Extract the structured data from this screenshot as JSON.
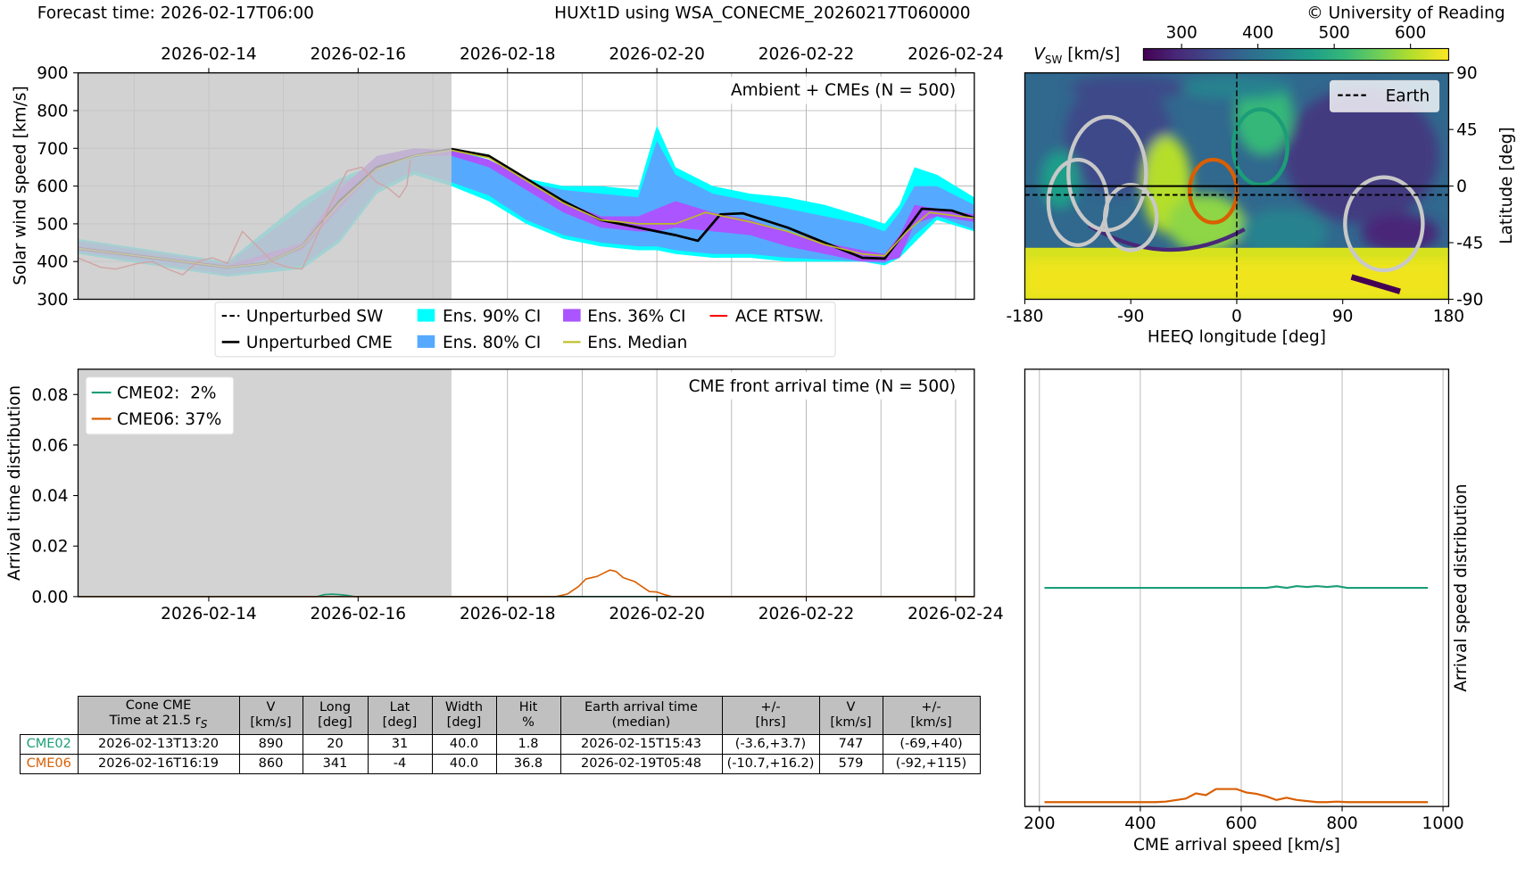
{
  "header": {
    "forecast_time": "Forecast time: 2026-02-17T06:00",
    "title": "HUXt1D using WSA_CONECME_20260217T060000",
    "copyright": "© University of Reading"
  },
  "colors": {
    "cyan": "#00ffff",
    "blue": "#55aaff",
    "purple": "#aa55ff",
    "median": "#bcbd22",
    "ace": "#ff0000",
    "cme02": "#1b9e77",
    "cme06": "#d95f02",
    "shade": "#d3d3d3",
    "ellipse_gray": "#c8c8c8"
  },
  "chart_data": [
    {
      "id": "solar-wind-speed",
      "type": "line",
      "title": "Ambient + CMEs (N = 500)",
      "ylabel": "Solar wind speed [km/s]",
      "ylim": [
        300,
        900
      ],
      "yticks": [
        "300",
        "400",
        "500",
        "600",
        "700",
        "800",
        "900"
      ],
      "x_unit": "days since 2026-02-12T06:00",
      "xlim": [
        0,
        12
      ],
      "date_ticks": [
        "2026-02-14",
        "2026-02-16",
        "2026-02-18",
        "2026-02-20",
        "2026-02-22",
        "2026-02-24"
      ],
      "date_tick_days": [
        1.75,
        3.75,
        5.75,
        7.75,
        9.75,
        11.75
      ],
      "forecast_shade_until_day": 5,
      "grid": true,
      "legend": {
        "placement": "below",
        "items": [
          "Unperturbed SW",
          "Unperturbed CME",
          "Ens. 90% CI",
          "Ens. 80% CI",
          "Ens. 36% CI",
          "Ens. Median",
          "ACE RTSW."
        ]
      },
      "band_x": [
        0,
        1,
        2,
        3,
        3.5,
        4,
        4.5,
        5,
        5.5,
        6,
        6.5,
        7,
        7.5,
        7.75,
        8,
        8.5,
        9,
        9.5,
        10,
        10.5,
        10.8,
        11,
        11.2,
        11.5,
        12
      ],
      "ci90": {
        "lower": [
          420,
          390,
          360,
          380,
          450,
          580,
          630,
          600,
          560,
          500,
          460,
          440,
          430,
          430,
          420,
          410,
          410,
          400,
          400,
          400,
          390,
          410,
          450,
          510,
          480
        ],
        "upper": [
          460,
          430,
          400,
          560,
          620,
          660,
          690,
          700,
          670,
          620,
          600,
          600,
          590,
          760,
          650,
          600,
          580,
          570,
          550,
          520,
          500,
          550,
          650,
          630,
          570
        ]
      },
      "ci80": {
        "lower": [
          425,
          395,
          365,
          390,
          460,
          590,
          640,
          610,
          575,
          510,
          470,
          450,
          440,
          440,
          430,
          420,
          420,
          410,
          405,
          400,
          395,
          420,
          470,
          520,
          485
        ],
        "upper": [
          455,
          425,
          395,
          540,
          610,
          650,
          680,
          690,
          660,
          610,
          590,
          580,
          570,
          720,
          630,
          580,
          560,
          540,
          520,
          500,
          480,
          530,
          600,
          600,
          550
        ]
      },
      "ci36": {
        "lower": [
          430,
          405,
          380,
          430,
          540,
          640,
          680,
          680,
          650,
          590,
          530,
          490,
          480,
          480,
          490,
          480,
          470,
          440,
          420,
          400,
          400,
          410,
          500,
          520,
          505
        ],
        "upper": [
          440,
          415,
          390,
          450,
          590,
          680,
          700,
          695,
          670,
          620,
          560,
          520,
          520,
          540,
          560,
          530,
          510,
          480,
          450,
          430,
          420,
          470,
          550,
          540,
          525
        ]
      },
      "unperturbed_cme": {
        "x": [
          0,
          1,
          2,
          2.5,
          3,
          3.5,
          4,
          4.5,
          5,
          5.5,
          6,
          6.5,
          7,
          7.5,
          8,
          8.3,
          8.6,
          8.9,
          9.5,
          10,
          10.5,
          10.8,
          11,
          11.3,
          11.7,
          12
        ],
        "y": [
          435,
          410,
          385,
          395,
          440,
          560,
          650,
          680,
          698,
          680,
          620,
          560,
          510,
          490,
          470,
          455,
          525,
          528,
          490,
          450,
          410,
          408,
          460,
          540,
          535,
          515
        ]
      },
      "median": {
        "x": [
          0,
          1,
          2,
          2.5,
          3,
          3.5,
          4,
          4.5,
          5,
          5.5,
          6,
          6.5,
          7,
          7.5,
          8,
          8.4,
          9,
          9.5,
          10,
          10.5,
          10.8,
          11.1,
          11.4,
          12
        ],
        "y": [
          435,
          410,
          385,
          395,
          440,
          555,
          645,
          680,
          695,
          675,
          615,
          555,
          510,
          500,
          500,
          530,
          505,
          480,
          445,
          420,
          415,
          480,
          530,
          515
        ]
      },
      "ace_rtsw": {
        "x": [
          0,
          0.3,
          0.5,
          0.8,
          1,
          1.2,
          1.4,
          1.6,
          1.8,
          2,
          2.2,
          2.4,
          2.6,
          2.8,
          3,
          3.2,
          3.4,
          3.6,
          3.8,
          3.9,
          4,
          4.15,
          4.3,
          4.4,
          4.45
        ],
        "y": [
          410,
          385,
          380,
          395,
          400,
          380,
          365,
          400,
          410,
          395,
          480,
          440,
          400,
          385,
          380,
          470,
          560,
          640,
          650,
          630,
          610,
          595,
          570,
          600,
          670
        ]
      }
    },
    {
      "id": "arrival-time",
      "type": "line",
      "title": "CME front arrival time (N = 500)",
      "ylabel": "Arrival time distribution",
      "ylim": [
        0,
        0.09
      ],
      "yticks": [
        "0.00",
        "0.02",
        "0.04",
        "0.06",
        "0.08"
      ],
      "x_unit": "days since 2026-02-12T06:00",
      "xlim": [
        0,
        12
      ],
      "date_ticks": [
        "2026-02-14",
        "2026-02-16",
        "2026-02-18",
        "2026-02-20",
        "2026-02-22",
        "2026-02-24"
      ],
      "date_tick_days": [
        1.75,
        3.75,
        5.75,
        7.75,
        9.75,
        11.75
      ],
      "forecast_shade_until_day": 5,
      "legend": {
        "placement": "top-left",
        "items": [
          "CME02:  2%",
          "CME06: 37%"
        ]
      },
      "series": [
        {
          "name": "CME02",
          "x": [
            0,
            3.2,
            3.3,
            3.4,
            3.5,
            3.6,
            3.7,
            12
          ],
          "y": [
            0,
            0,
            0.0008,
            0.001,
            0.0008,
            0.0005,
            0,
            0
          ]
        },
        {
          "name": "CME06",
          "x": [
            0,
            6.4,
            6.55,
            6.7,
            6.8,
            6.95,
            7.05,
            7.12,
            7.2,
            7.3,
            7.45,
            7.55,
            7.65,
            7.75,
            7.85,
            7.95,
            12
          ],
          "y": [
            0,
            0,
            0.001,
            0.004,
            0.007,
            0.008,
            0.0095,
            0.0105,
            0.01,
            0.0075,
            0.006,
            0.004,
            0.002,
            0.0018,
            0.0008,
            0,
            0
          ]
        }
      ]
    },
    {
      "id": "arrival-speed",
      "type": "line",
      "xlabel": "CME arrival speed [km/s]",
      "ylabel": "Arrival speed distribution",
      "xlim": [
        175,
        1010
      ],
      "xticks": [
        "200",
        "400",
        "600",
        "800",
        "1000"
      ],
      "xtick_values": [
        200,
        400,
        600,
        800,
        1000
      ],
      "ylim": [
        0,
        1
      ],
      "series": [
        {
          "name": "CME02",
          "offset": 0.5,
          "x": [
            210,
            650,
            670,
            690,
            710,
            730,
            750,
            770,
            790,
            810,
            970
          ],
          "y": [
            0,
            0,
            0.003,
            0,
            0.004,
            0.002,
            0.004,
            0.002,
            0.004,
            0,
            0
          ]
        },
        {
          "name": "CME06",
          "offset": 0.01,
          "x": [
            210,
            430,
            450,
            490,
            510,
            530,
            550,
            590,
            610,
            630,
            650,
            670,
            690,
            710,
            750,
            770,
            790,
            810,
            970
          ],
          "y": [
            0,
            0,
            0.001,
            0.008,
            0.02,
            0.016,
            0.03,
            0.03,
            0.022,
            0.019,
            0.013,
            0.005,
            0.01,
            0.005,
            0,
            0,
            0.001,
            0,
            0
          ]
        }
      ]
    },
    {
      "id": "vsw-map",
      "type": "heatmap",
      "colorbar_label": "V",
      "colorbar_sub": "SW",
      "colorbar_unit": " [km/s]",
      "colorbar_range": [
        250,
        650
      ],
      "colorbar_ticks": [
        "300",
        "400",
        "500",
        "600"
      ],
      "colorbar_tick_values": [
        300,
        400,
        500,
        600
      ],
      "xlabel": "HEEQ longitude [deg]",
      "ylabel": "Latitude [deg]",
      "xlim": [
        -180,
        180
      ],
      "ylim": [
        -90,
        90
      ],
      "xticks": [
        "-180",
        "-90",
        "0",
        "90",
        "180"
      ],
      "xtick_values": [
        -180,
        -90,
        0,
        90,
        180
      ],
      "yticks": [
        "90",
        "45",
        "0",
        "-45",
        "-90"
      ],
      "ytick_values": [
        90,
        45,
        0,
        -45,
        -90
      ],
      "legend": {
        "placement": "top-right",
        "items": [
          "Earth"
        ]
      },
      "earth_lat": -7,
      "cones": [
        {
          "name": "cone-gray-1",
          "lon": -110,
          "lat": 10,
          "dlon": 33,
          "dlat": 45,
          "color": "gray"
        },
        {
          "name": "cone-gray-2",
          "lon": -135,
          "lat": -13,
          "dlon": 25,
          "dlat": 34,
          "color": "gray"
        },
        {
          "name": "cone-gray-3",
          "lon": -90,
          "lat": -25,
          "dlon": 22,
          "dlat": 26,
          "color": "gray"
        },
        {
          "name": "cone-gray-4",
          "lon": 125,
          "lat": -30,
          "dlon": 33,
          "dlat": 37,
          "color": "gray"
        },
        {
          "name": "cone-cme02",
          "lon": 20,
          "lat": 31,
          "dlon": 23,
          "dlat": 30,
          "color": "cme02"
        },
        {
          "name": "cone-cme06",
          "lon": -20,
          "lat": -4,
          "dlon": 20,
          "dlat": 25,
          "color": "cme06"
        }
      ]
    }
  ],
  "table": {
    "headers": [
      [
        "Cone CME",
        "Time at 21.5 r",
        "S"
      ],
      [
        "V",
        "[km/s]"
      ],
      [
        "Long",
        "[deg]"
      ],
      [
        "Lat",
        "[deg]"
      ],
      [
        "Width",
        "[deg]"
      ],
      [
        "Hit",
        "%"
      ],
      [
        "Earth arrival time",
        "(median)"
      ],
      [
        "+/-",
        "[hrs]"
      ],
      [
        "V",
        "[km/s]"
      ],
      [
        "+/-",
        "[km/s]"
      ]
    ],
    "rows": [
      {
        "name": "CME02",
        "cells": [
          "2026-02-13T13:20",
          "890",
          "20",
          "31",
          "40.0",
          "1.8",
          "2026-02-15T15:43",
          "(-3.6,+3.7)",
          "747",
          "(-69,+40)"
        ]
      },
      {
        "name": "CME06",
        "cells": [
          "2026-02-16T16:19",
          "860",
          "341",
          "-4",
          "40.0",
          "36.8",
          "2026-02-19T05:48",
          "(-10.7,+16.2)",
          "579",
          "(-92,+115)"
        ]
      }
    ]
  }
}
